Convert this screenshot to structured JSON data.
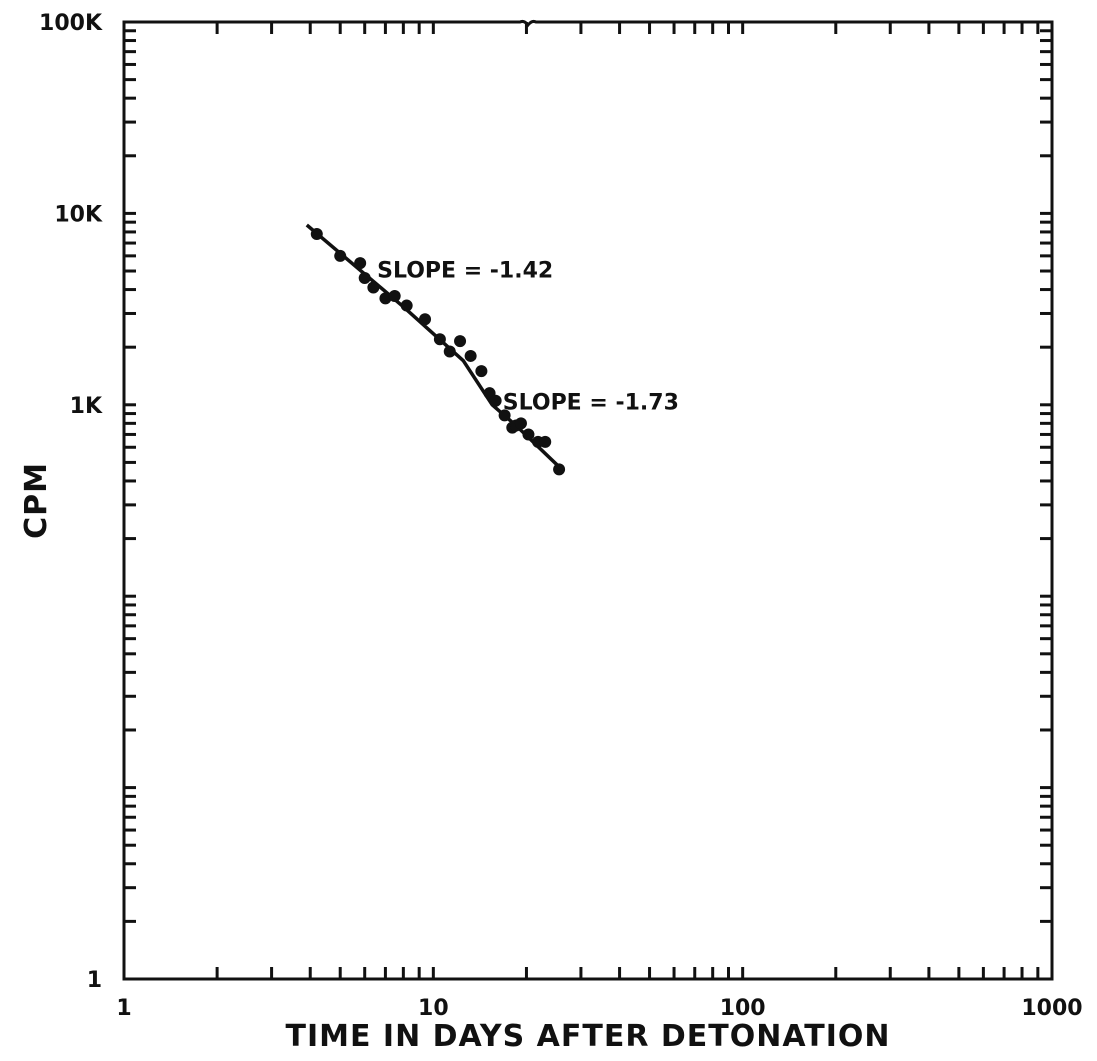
{
  "chart_data": {
    "type": "scatter",
    "title": "",
    "xlabel": "TIME IN DAYS AFTER DETONATION",
    "ylabel": "CPM",
    "x_scale": "log",
    "y_scale": "log",
    "xlim": [
      1,
      1000
    ],
    "ylim": [
      1,
      100000
    ],
    "x_tick_labels": [
      {
        "value": 1,
        "label": "1"
      },
      {
        "value": 10,
        "label": "10"
      },
      {
        "value": 100,
        "label": "100"
      },
      {
        "value": 1000,
        "label": "1000"
      }
    ],
    "y_tick_labels": [
      {
        "value": 1,
        "label": "1"
      },
      {
        "value": 1000,
        "label": "1K"
      },
      {
        "value": 10000,
        "label": "10K"
      },
      {
        "value": 100000,
        "label": "100K"
      }
    ],
    "grid": false,
    "points": {
      "x": [
        4.2,
        5.0,
        5.8,
        6.0,
        6.4,
        7.0,
        7.5,
        8.2,
        9.4,
        10.5,
        11.3,
        12.2,
        13.2,
        14.3,
        15.2,
        15.9,
        17.0,
        18.0,
        18.5,
        19.2,
        20.3,
        21.8,
        23.0,
        25.5
      ],
      "y": [
        7800,
        6000,
        5500,
        4600,
        4100,
        3600,
        3700,
        3300,
        2800,
        2200,
        1900,
        2150,
        1800,
        1500,
        1150,
        1050,
        880,
        760,
        780,
        800,
        700,
        640,
        640,
        460
      ]
    },
    "fit_line": {
      "x": [
        3.9,
        8.0,
        12.5,
        15.5,
        18.5,
        26.0
      ],
      "y": [
        8700,
        3250,
        1700,
        1000,
        780,
        460
      ]
    },
    "annotations": [
      {
        "text": "SLOPE = -1.42",
        "x": 6.2,
        "y": 5100
      },
      {
        "text": "SLOPE = -1.73",
        "x": 15.8,
        "y": 1040
      }
    ]
  }
}
